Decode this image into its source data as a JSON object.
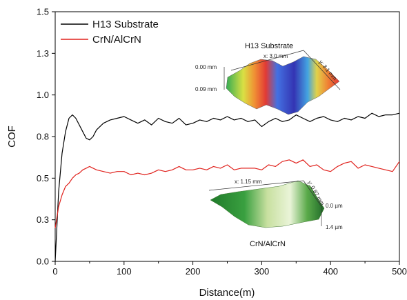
{
  "chart_data": {
    "type": "line",
    "xlabel": "Distance(m)",
    "ylabel": "COF",
    "xlim": [
      0,
      500
    ],
    "ylim": [
      0.0,
      1.5
    ],
    "x_ticks": [
      0,
      100,
      200,
      300,
      400,
      500
    ],
    "y_ticks": [
      "0.0",
      "0.3",
      "0.5",
      "0.8",
      "1.0",
      "1.3",
      "1.5"
    ],
    "y_tick_values": [
      0.0,
      0.25,
      0.5,
      0.75,
      1.0,
      1.25,
      1.5
    ],
    "legend_position": "top-left",
    "grid": false,
    "series": [
      {
        "name": "H13 Substrate",
        "color": "#000000",
        "x": [
          0,
          5,
          10,
          15,
          20,
          25,
          30,
          35,
          40,
          45,
          50,
          55,
          60,
          70,
          80,
          90,
          100,
          110,
          120,
          130,
          140,
          150,
          160,
          170,
          180,
          190,
          200,
          210,
          220,
          230,
          240,
          250,
          260,
          270,
          280,
          290,
          300,
          310,
          320,
          330,
          340,
          350,
          360,
          370,
          380,
          390,
          400,
          410,
          420,
          430,
          440,
          450,
          460,
          470,
          480,
          490,
          500
        ],
        "y": [
          0.0,
          0.42,
          0.65,
          0.78,
          0.86,
          0.88,
          0.86,
          0.82,
          0.78,
          0.74,
          0.73,
          0.75,
          0.79,
          0.83,
          0.85,
          0.86,
          0.87,
          0.85,
          0.83,
          0.85,
          0.82,
          0.86,
          0.84,
          0.83,
          0.86,
          0.82,
          0.83,
          0.85,
          0.84,
          0.86,
          0.85,
          0.87,
          0.85,
          0.86,
          0.84,
          0.85,
          0.81,
          0.84,
          0.86,
          0.84,
          0.85,
          0.88,
          0.86,
          0.84,
          0.86,
          0.87,
          0.85,
          0.84,
          0.86,
          0.85,
          0.87,
          0.86,
          0.89,
          0.87,
          0.88,
          0.88,
          0.89
        ]
      },
      {
        "name": "CrN/AlCrN",
        "color": "#e0201b",
        "x": [
          0,
          5,
          10,
          15,
          20,
          25,
          30,
          35,
          40,
          45,
          50,
          60,
          70,
          80,
          90,
          100,
          110,
          120,
          130,
          140,
          150,
          160,
          170,
          180,
          190,
          200,
          210,
          220,
          230,
          240,
          250,
          260,
          270,
          280,
          290,
          300,
          310,
          320,
          330,
          340,
          350,
          360,
          370,
          380,
          390,
          400,
          410,
          420,
          430,
          440,
          450,
          460,
          470,
          480,
          490,
          500
        ],
        "y": [
          0.2,
          0.33,
          0.4,
          0.45,
          0.47,
          0.5,
          0.52,
          0.53,
          0.55,
          0.56,
          0.57,
          0.55,
          0.54,
          0.53,
          0.54,
          0.54,
          0.52,
          0.53,
          0.52,
          0.53,
          0.55,
          0.54,
          0.55,
          0.57,
          0.55,
          0.55,
          0.56,
          0.55,
          0.57,
          0.56,
          0.58,
          0.55,
          0.56,
          0.56,
          0.56,
          0.55,
          0.58,
          0.57,
          0.6,
          0.61,
          0.59,
          0.61,
          0.57,
          0.58,
          0.55,
          0.54,
          0.57,
          0.59,
          0.6,
          0.56,
          0.58,
          0.57,
          0.56,
          0.55,
          0.54,
          0.6
        ]
      }
    ]
  },
  "insets": {
    "h13": {
      "title": "H13 Substrate",
      "x_dim": "x: 3.0 mm",
      "y_dim": "y: 3.1 mm",
      "z_top": "0.00 mm",
      "z_bottom": "0.09 mm"
    },
    "crn": {
      "title": "CrN/AlCrN",
      "x_dim": "x: 1.15 mm",
      "y_dim": "y: 0.87 mm",
      "z_top": "0.0 µm",
      "z_bottom": "1.4 µm"
    }
  }
}
